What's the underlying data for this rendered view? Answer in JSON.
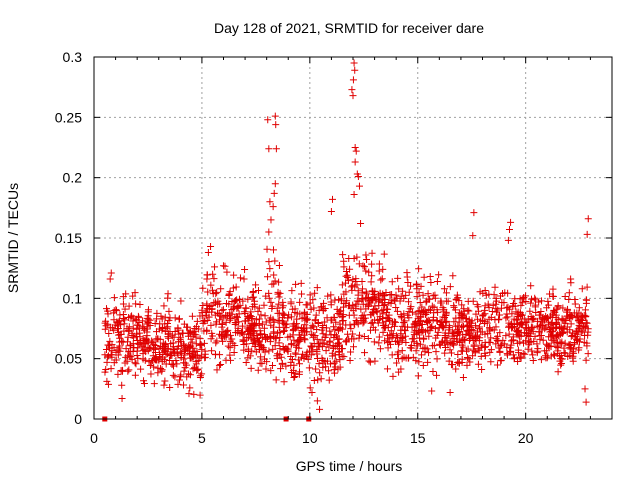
{
  "chart_data": {
    "type": "scatter",
    "title": "Day 128 of 2021, SRMTID for receiver dare",
    "xlabel": "GPS time / hours",
    "ylabel": "SRMTID / TECUs",
    "xlim": [
      0,
      24
    ],
    "ylim": [
      0,
      0.3
    ],
    "xticks": [
      0,
      5,
      10,
      15,
      20
    ],
    "xtick_labels": [
      "0",
      "5",
      "10",
      "15",
      "20"
    ],
    "yticks": [
      0,
      0.05,
      0.1,
      0.15,
      0.2,
      0.25,
      0.3
    ],
    "ytick_labels": [
      "0",
      "0.05",
      "0.1",
      "0.15",
      "0.2",
      "0.25",
      "0.3"
    ],
    "grid": true,
    "marker": "+",
    "color": "#e00000",
    "baseline_markers": [
      {
        "x": 0.5,
        "y": 0
      },
      {
        "x": 8.9,
        "y": 0
      },
      {
        "x": 9.95,
        "y": 0
      }
    ],
    "series": [
      {
        "name": "SRMTID",
        "marker": "+",
        "color": "#e00000",
        "profile_note": "dense scatter; values mostly between 0.02 and 0.14 TECU",
        "segments": [
          {
            "x0": 0.5,
            "x1": 3.5,
            "center": 0.066,
            "spread": 0.022
          },
          {
            "x0": 3.5,
            "x1": 5.0,
            "center": 0.058,
            "spread": 0.02
          },
          {
            "x0": 5.0,
            "x1": 7.5,
            "center": 0.08,
            "spread": 0.025
          },
          {
            "x0": 7.5,
            "x1": 8.0,
            "center": 0.07,
            "spread": 0.022
          },
          {
            "x0": 8.0,
            "x1": 8.6,
            "center": 0.085,
            "spread": 0.03
          },
          {
            "x0": 8.6,
            "x1": 11.5,
            "center": 0.07,
            "spread": 0.025
          },
          {
            "x0": 11.5,
            "x1": 13.5,
            "center": 0.095,
            "spread": 0.03
          },
          {
            "x0": 13.5,
            "x1": 17.0,
            "center": 0.08,
            "spread": 0.025
          },
          {
            "x0": 17.0,
            "x1": 22.9,
            "center": 0.075,
            "spread": 0.02
          }
        ],
        "points_per_hour": 90,
        "extremes": [
          {
            "x": 8.05,
            "y": 0.248
          },
          {
            "x": 8.1,
            "y": 0.224
          },
          {
            "x": 8.4,
            "y": 0.251
          },
          {
            "x": 8.42,
            "y": 0.244
          },
          {
            "x": 8.45,
            "y": 0.224
          },
          {
            "x": 8.4,
            "y": 0.195
          },
          {
            "x": 8.35,
            "y": 0.187
          },
          {
            "x": 8.15,
            "y": 0.18
          },
          {
            "x": 8.3,
            "y": 0.176
          },
          {
            "x": 8.2,
            "y": 0.165
          },
          {
            "x": 8.1,
            "y": 0.155
          },
          {
            "x": 12.05,
            "y": 0.295
          },
          {
            "x": 12.08,
            "y": 0.289
          },
          {
            "x": 12.02,
            "y": 0.281
          },
          {
            "x": 11.95,
            "y": 0.273
          },
          {
            "x": 12.0,
            "y": 0.268
          },
          {
            "x": 12.1,
            "y": 0.225
          },
          {
            "x": 12.15,
            "y": 0.222
          },
          {
            "x": 12.1,
            "y": 0.213
          },
          {
            "x": 12.2,
            "y": 0.203
          },
          {
            "x": 12.25,
            "y": 0.201
          },
          {
            "x": 12.3,
            "y": 0.193
          },
          {
            "x": 12.05,
            "y": 0.186
          },
          {
            "x": 11.05,
            "y": 0.182
          },
          {
            "x": 11.0,
            "y": 0.172
          },
          {
            "x": 12.35,
            "y": 0.162
          },
          {
            "x": 17.6,
            "y": 0.171
          },
          {
            "x": 17.55,
            "y": 0.152
          },
          {
            "x": 19.3,
            "y": 0.163
          },
          {
            "x": 19.25,
            "y": 0.157
          },
          {
            "x": 19.2,
            "y": 0.148
          },
          {
            "x": 22.9,
            "y": 0.166
          },
          {
            "x": 22.85,
            "y": 0.153
          },
          {
            "x": 5.4,
            "y": 0.143
          },
          {
            "x": 5.3,
            "y": 0.138
          },
          {
            "x": 22.8,
            "y": 0.014
          },
          {
            "x": 22.75,
            "y": 0.025
          },
          {
            "x": 10.45,
            "y": 0.008
          },
          {
            "x": 10.35,
            "y": 0.015
          },
          {
            "x": 10.1,
            "y": 0.022
          },
          {
            "x": 1.3,
            "y": 0.017
          },
          {
            "x": 4.4,
            "y": 0.021
          },
          {
            "x": 16.5,
            "y": 0.022
          },
          {
            "x": 0.8,
            "y": 0.121
          },
          {
            "x": 0.75,
            "y": 0.116
          }
        ]
      }
    ]
  }
}
